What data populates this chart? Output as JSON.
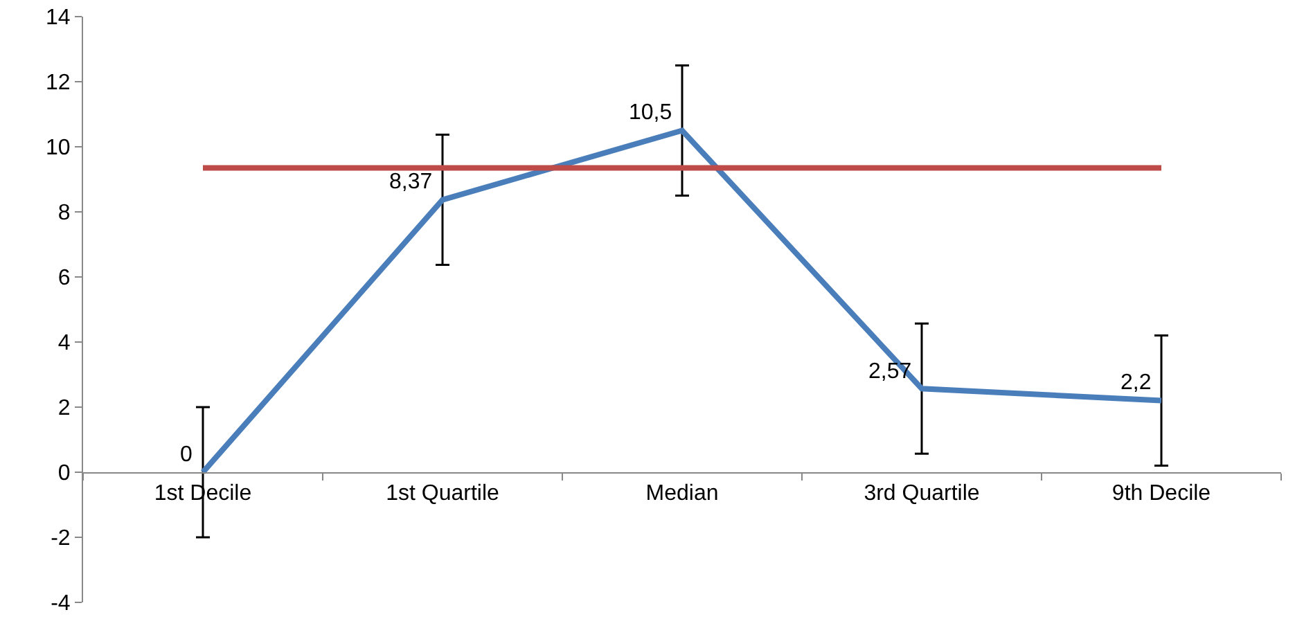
{
  "chart_data": {
    "type": "line",
    "categories": [
      "1st Decile",
      "1st Quartile",
      "Median",
      "3rd Quartile",
      "9th Decile"
    ],
    "series": [
      {
        "color": "#4a7ebb",
        "values": [
          0,
          8.37,
          10.5,
          2.57,
          2.2
        ],
        "errors": [
          2,
          2,
          2,
          2,
          2
        ],
        "value_labels": [
          "0",
          "8,37",
          "10,5",
          "2,57",
          "2,2"
        ]
      },
      {
        "color": "#be4b48",
        "values": [
          9.35,
          9.35,
          9.35,
          9.35,
          9.35
        ]
      }
    ],
    "ylim": [
      -4,
      14
    ],
    "yticks": [
      -4,
      -2,
      0,
      2,
      4,
      6,
      8,
      10,
      12,
      14
    ],
    "marker": "none",
    "line_style": "solid"
  }
}
